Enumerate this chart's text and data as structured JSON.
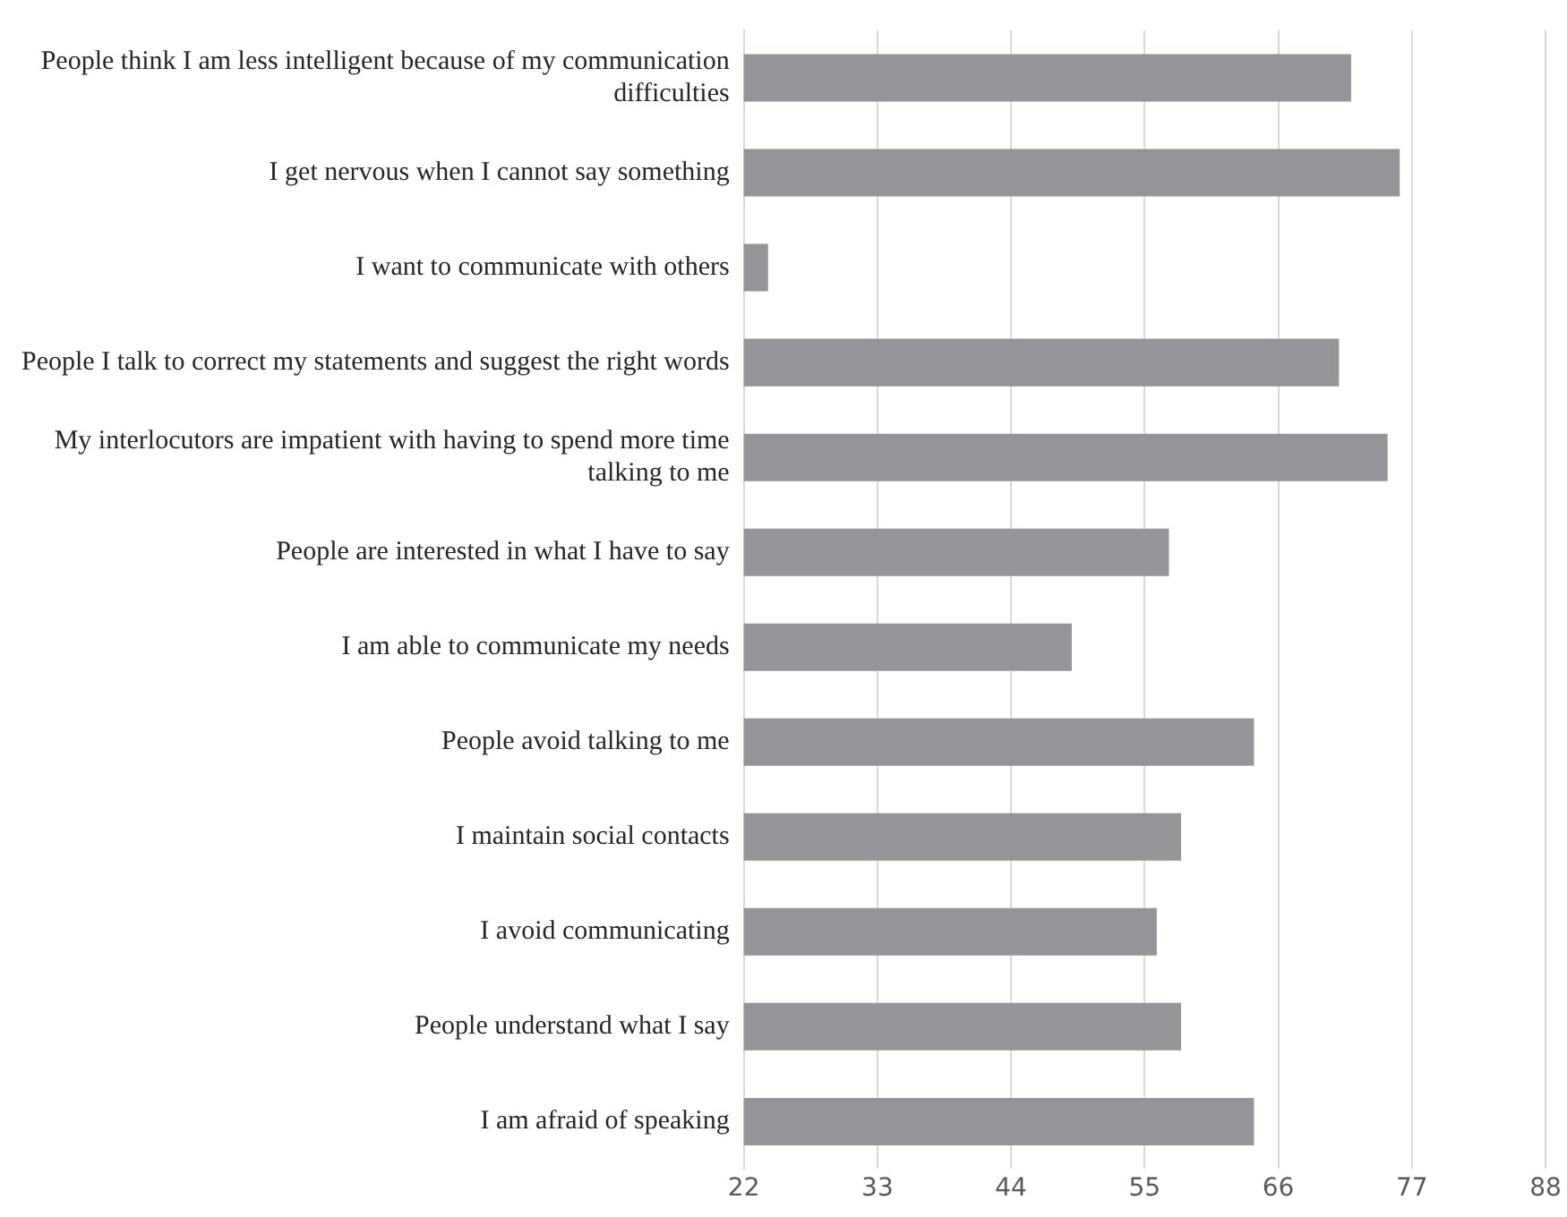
{
  "chart_data": {
    "type": "bar",
    "orientation": "horizontal",
    "categories": [
      "People think I am less intelligent because of my communication difficulties",
      "I get nervous when I cannot say something",
      "I want to communicate with others",
      "People I talk to correct my statements and suggest the right words",
      "My interlocutors are impatient with having to spend more time talking to me",
      "People are interested in what I have to say",
      "I am able to communicate my needs",
      "People avoid talking to me",
      "I maintain social contacts",
      "I avoid communicating",
      "People understand what I say",
      "I am afraid of speaking"
    ],
    "values": [
      72,
      76,
      24,
      71,
      75,
      57,
      49,
      64,
      58,
      56,
      58,
      64
    ],
    "color": "#939598",
    "xlim": [
      22,
      88
    ],
    "xticks": [
      22,
      33,
      44,
      55,
      66,
      77,
      88
    ],
    "grid": "x",
    "legend": false
  }
}
